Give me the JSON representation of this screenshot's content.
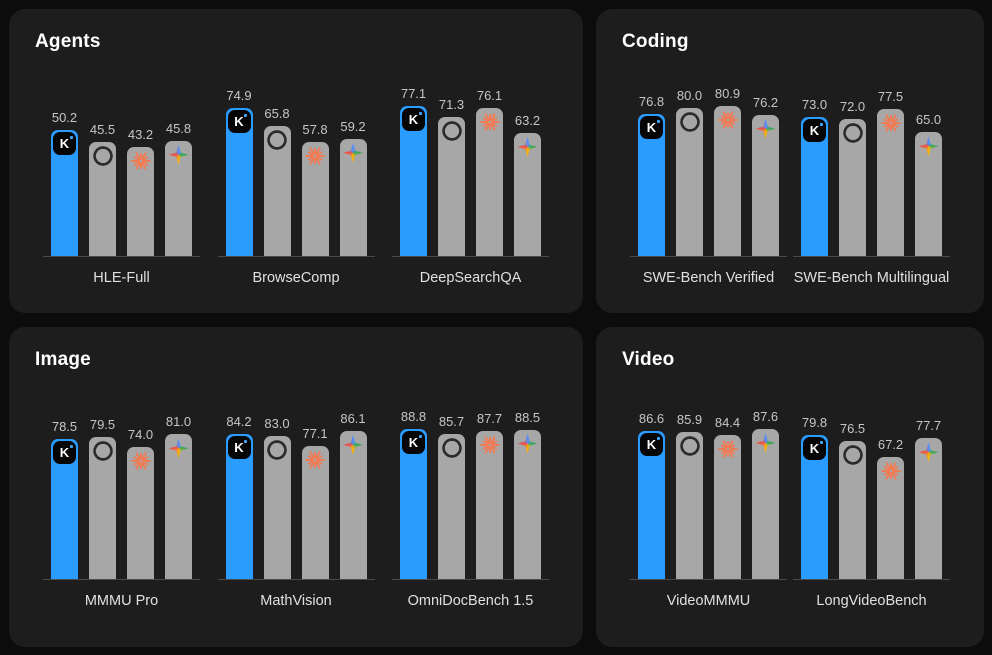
{
  "colors": {
    "page_bg": "#0c0c0c",
    "card_bg": "#1d1d1e",
    "highlight_bar": "#2a9bff",
    "default_bar": "#a7a7a7",
    "value_text": "#c6c6c6",
    "benchmark_text": "#e0e0e0",
    "axis_line": "#4a4a4a",
    "claude_orange": "#f07c56",
    "openai_glyph": "#2b2b2b"
  },
  "models": [
    {
      "id": "kimi",
      "icon": "kimi-icon",
      "highlighted": true
    },
    {
      "id": "openai",
      "icon": "openai-icon",
      "highlighted": false
    },
    {
      "id": "claude",
      "icon": "claude-icon",
      "highlighted": false
    },
    {
      "id": "gemini",
      "icon": "gemini-icon",
      "highlighted": false
    }
  ],
  "chart_data": [
    {
      "type": "bar",
      "title": "Agents",
      "value_range": [
        0,
        100
      ],
      "grid": false,
      "legend": "icons-on-bars",
      "groups": [
        {
          "label": "HLE-Full",
          "values": [
            50.2,
            45.5,
            43.2,
            45.8
          ]
        },
        {
          "label": "BrowseComp",
          "values": [
            74.9,
            65.8,
            57.8,
            59.2
          ]
        },
        {
          "label": "DeepSearchQA",
          "values": [
            77.1,
            71.3,
            76.1,
            63.2
          ]
        }
      ]
    },
    {
      "type": "bar",
      "title": "Coding",
      "value_range": [
        0,
        100
      ],
      "grid": false,
      "legend": "icons-on-bars",
      "groups": [
        {
          "label": "SWE-Bench Verified",
          "values": [
            76.8,
            80.0,
            80.9,
            76.2
          ]
        },
        {
          "label": "SWE-Bench Multilingual",
          "values": [
            73.0,
            72.0,
            77.5,
            65.0
          ]
        }
      ]
    },
    {
      "type": "bar",
      "title": "Image",
      "value_range": [
        0,
        100
      ],
      "grid": false,
      "legend": "icons-on-bars",
      "groups": [
        {
          "label": "MMMU Pro",
          "values": [
            78.5,
            79.5,
            74.0,
            81.0
          ]
        },
        {
          "label": "MathVision",
          "values": [
            84.2,
            83.0,
            77.1,
            86.1
          ]
        },
        {
          "label": "OmniDocBench 1.5",
          "values": [
            88.8,
            85.7,
            87.7,
            88.5
          ]
        }
      ]
    },
    {
      "type": "bar",
      "title": "Video",
      "value_range": [
        0,
        100
      ],
      "grid": false,
      "legend": "icons-on-bars",
      "groups": [
        {
          "label": "VideoMMMU",
          "values": [
            86.6,
            85.9,
            84.4,
            87.6
          ]
        },
        {
          "label": "LongVideoBench",
          "values": [
            79.8,
            76.5,
            67.2,
            77.7
          ]
        }
      ]
    }
  ]
}
